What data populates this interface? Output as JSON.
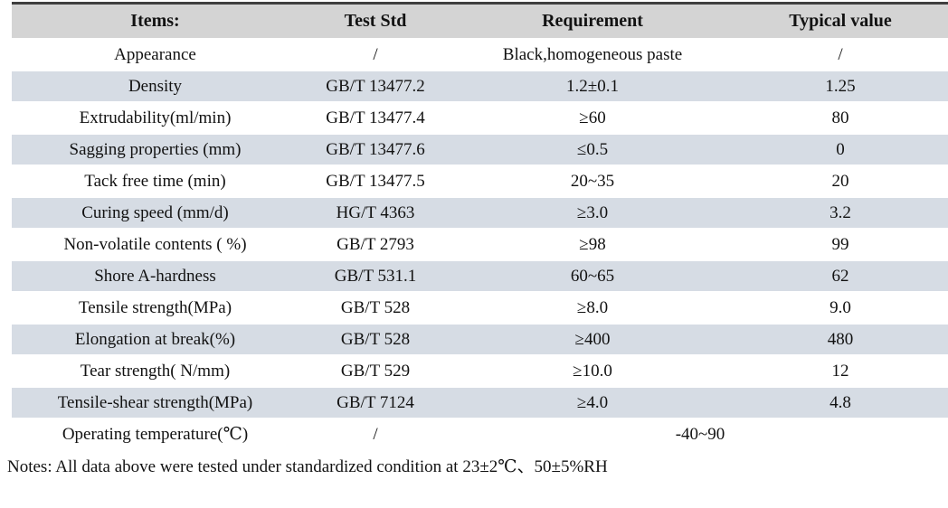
{
  "table": {
    "headers": [
      "Items:",
      "Test Std",
      "Requirement",
      "Typical value"
    ],
    "rows": [
      {
        "item": "Appearance",
        "std": "/",
        "req": "Black,homogeneous paste",
        "typ": "/"
      },
      {
        "item": "Density",
        "std": "GB/T 13477.2",
        "req": "1.2±0.1",
        "typ": "1.25"
      },
      {
        "item": "Extrudability(ml/min)",
        "std": "GB/T 13477.4",
        "req": "≥60",
        "typ": "80"
      },
      {
        "item": "Sagging properties (mm)",
        "std": "GB/T 13477.6",
        "req": "≤0.5",
        "typ": "0"
      },
      {
        "item": "Tack free time (min)",
        "std": "GB/T 13477.5",
        "req": "20~35",
        "typ": "20"
      },
      {
        "item": "Curing speed (mm/d)",
        "std": "HG/T 4363",
        "req": "≥3.0",
        "typ": "3.2"
      },
      {
        "item": "Non-volatile contents ( %)",
        "std": "GB/T 2793",
        "req": "≥98",
        "typ": "99"
      },
      {
        "item": "Shore A-hardness",
        "std": "GB/T 531.1",
        "req": "60~65",
        "typ": "62"
      },
      {
        "item": "Tensile strength(MPa)",
        "std": "GB/T 528",
        "req": "≥8.0",
        "typ": "9.0"
      },
      {
        "item": "Elongation at break(%)",
        "std": "GB/T 528",
        "req": "≥400",
        "typ": "480"
      },
      {
        "item": "Tear strength( N/mm)",
        "std": "GB/T 529",
        "req": "≥10.0",
        "typ": "12"
      },
      {
        "item": "Tensile-shear strength(MPa)",
        "std": "GB/T 7124",
        "req": "≥4.0",
        "typ": "4.8"
      },
      {
        "item": "Operating temperature(℃)",
        "std": "/",
        "req": "-40~90",
        "typ": null
      }
    ],
    "colors": {
      "header_bg": "#d4d4d4",
      "shaded_row_bg": "#d6dce4",
      "top_border": "#3f3f3f"
    }
  },
  "notes": "Notes: All data above were tested under standardized condition at 23±2℃、50±5%RH"
}
